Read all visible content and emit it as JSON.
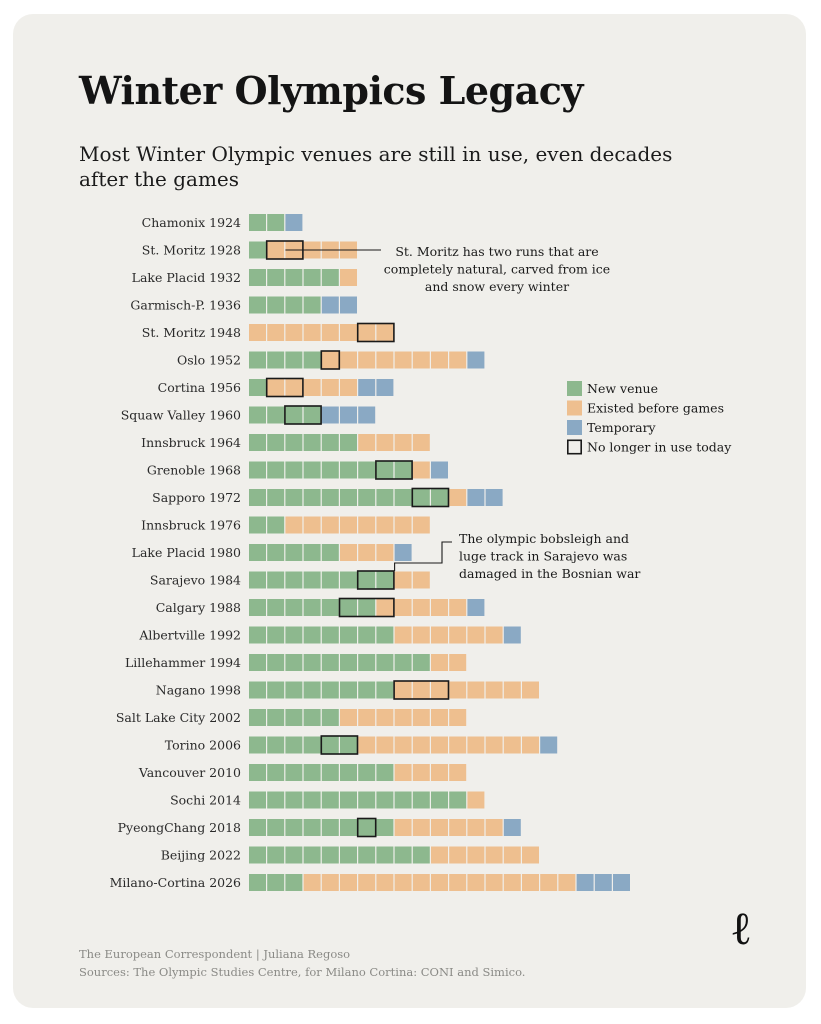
{
  "page": {
    "title": "Winter Olympics Legacy",
    "subtitle": "Most Winter Olympic venues are still in use, even decades after the games",
    "logo": "ℓ",
    "footer": {
      "credit": "The European Correspondent | Juliana Regoso",
      "sources": "Sources: The Olympic Studies Centre, for Milano Cortina: CONI and Simico."
    }
  },
  "chart_data": {
    "type": "waffle-bar",
    "title": "Winter Olympics Legacy",
    "unit": "venues",
    "categories_order": [
      "new",
      "existed",
      "temporary"
    ],
    "legend": [
      {
        "key": "new",
        "label": "New venue",
        "color": "#8db88e"
      },
      {
        "key": "existed",
        "label": "Existed before games",
        "color": "#eebf8f"
      },
      {
        "key": "temporary",
        "label": "Temporary",
        "color": "#8aa9c4"
      },
      {
        "key": "unused",
        "label": "No longer in use today",
        "color": "none"
      }
    ],
    "games": [
      {
        "label": "Chamonix 1924",
        "new": 2,
        "existed": 0,
        "temporary": 1,
        "unused": []
      },
      {
        "label": "St. Moritz 1928",
        "new": 1,
        "existed": 5,
        "temporary": 0,
        "unused": [
          1,
          2
        ]
      },
      {
        "label": "Lake Placid 1932",
        "new": 5,
        "existed": 1,
        "temporary": 0,
        "unused": []
      },
      {
        "label": "Garmisch-P. 1936",
        "new": 4,
        "existed": 0,
        "temporary": 2,
        "unused": []
      },
      {
        "label": "St. Moritz 1948",
        "new": 0,
        "existed": 8,
        "temporary": 0,
        "unused": [
          6,
          7
        ]
      },
      {
        "label": "Oslo 1952",
        "new": 4,
        "existed": 8,
        "temporary": 1,
        "unused": [
          4
        ]
      },
      {
        "label": "Cortina 1956",
        "new": 1,
        "existed": 5,
        "temporary": 2,
        "unused": [
          1,
          2
        ]
      },
      {
        "label": "Squaw Valley 1960",
        "new": 4,
        "existed": 0,
        "temporary": 3,
        "unused": [
          2,
          3
        ]
      },
      {
        "label": "Innsbruck 1964",
        "new": 6,
        "existed": 4,
        "temporary": 0,
        "unused": []
      },
      {
        "label": "Grenoble 1968",
        "new": 9,
        "existed": 1,
        "temporary": 1,
        "unused": [
          7,
          8
        ]
      },
      {
        "label": "Sapporo 1972",
        "new": 11,
        "existed": 1,
        "temporary": 2,
        "unused": [
          9,
          10
        ]
      },
      {
        "label": "Innsbruck 1976",
        "new": 2,
        "existed": 8,
        "temporary": 0,
        "unused": []
      },
      {
        "label": "Lake Placid 1980",
        "new": 5,
        "existed": 3,
        "temporary": 1,
        "unused": []
      },
      {
        "label": "Sarajevo 1984",
        "new": 8,
        "existed": 2,
        "temporary": 0,
        "unused": [
          6,
          7
        ]
      },
      {
        "label": "Calgary 1988",
        "new": 7,
        "existed": 5,
        "temporary": 1,
        "unused": [
          5,
          6,
          7
        ]
      },
      {
        "label": "Albertville 1992",
        "new": 8,
        "existed": 6,
        "temporary": 1,
        "unused": []
      },
      {
        "label": "Lillehammer 1994",
        "new": 10,
        "existed": 2,
        "temporary": 0,
        "unused": []
      },
      {
        "label": "Nagano 1998",
        "new": 8,
        "existed": 8,
        "temporary": 0,
        "unused": [
          8,
          9,
          10
        ]
      },
      {
        "label": "Salt Lake City 2002",
        "new": 5,
        "existed": 7,
        "temporary": 0,
        "unused": []
      },
      {
        "label": "Torino 2006",
        "new": 6,
        "existed": 10,
        "temporary": 1,
        "unused": [
          4,
          5
        ]
      },
      {
        "label": "Vancouver 2010",
        "new": 8,
        "existed": 4,
        "temporary": 0,
        "unused": []
      },
      {
        "label": "Sochi 2014",
        "new": 12,
        "existed": 1,
        "temporary": 0,
        "unused": []
      },
      {
        "label": "PyeongChang 2018",
        "new": 8,
        "existed": 6,
        "temporary": 1,
        "unused": [
          6
        ]
      },
      {
        "label": "Beijing 2022",
        "new": 10,
        "existed": 6,
        "temporary": 0,
        "unused": []
      },
      {
        "label": "Milano-Cortina 2026",
        "new": 3,
        "existed": 15,
        "temporary": 3,
        "unused": []
      }
    ],
    "annotations": [
      {
        "row": 1,
        "cell": 2,
        "text": [
          "St. Moritz has two runs that are",
          "completely natural, carved from ice",
          "and snow every winter"
        ]
      },
      {
        "row": 13,
        "cell": 8,
        "text": [
          "The olympic bobsleigh and",
          "luge track in Sarajevo was",
          "damaged in the Bosnian war"
        ]
      }
    ]
  }
}
